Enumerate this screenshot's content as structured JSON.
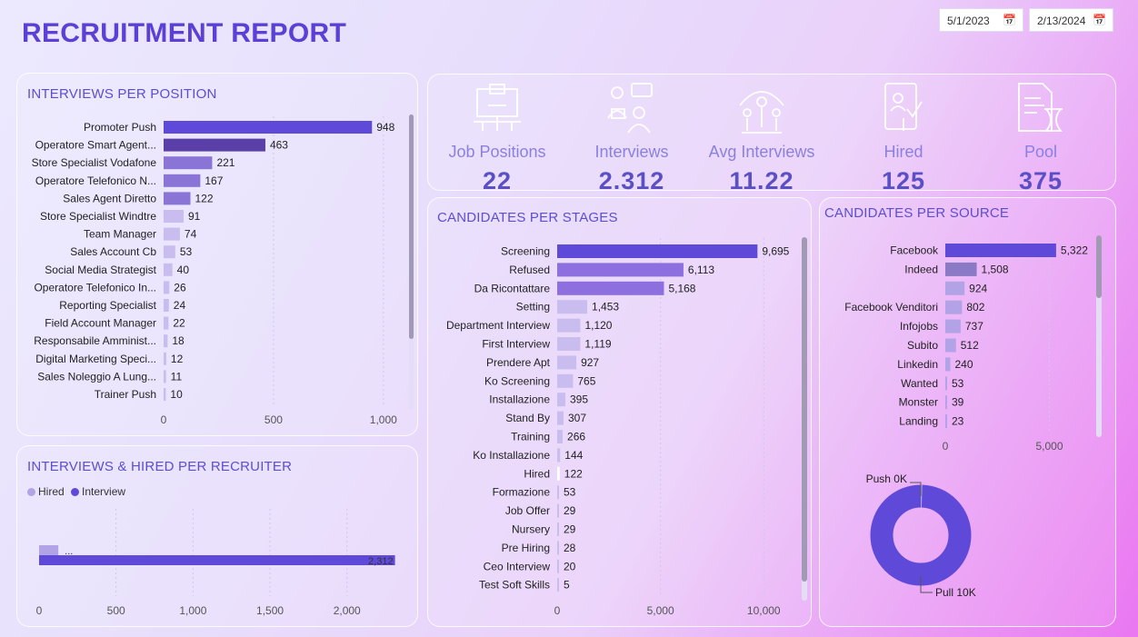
{
  "header": {
    "title": "RECRUITMENT REPORT",
    "date_start": "5/1/2023",
    "date_end": "2/13/2024",
    "calendar_icon": "calendar-icon"
  },
  "kpis": [
    {
      "label": "Job Positions",
      "value": "22",
      "icon": "job-positions-icon"
    },
    {
      "label": "Interviews",
      "value": "2.312",
      "icon": "interviews-icon"
    },
    {
      "label": "Avg Interviews",
      "value": "11.22",
      "icon": "avg-interviews-icon"
    },
    {
      "label": "Hired",
      "value": "125",
      "icon": "hired-icon"
    },
    {
      "label": "Pool",
      "value": "375",
      "icon": "pool-icon"
    }
  ],
  "colors": {
    "dark": "#5f49d8",
    "mid": "#8a74d6",
    "light": "#b2a3e6",
    "deep": "#5b3fa8",
    "pale": "#c9bdf0"
  },
  "chart_data": [
    {
      "id": "positions",
      "type": "bar",
      "orientation": "horizontal",
      "title": "INTERVIEWS PER POSITION",
      "categories": [
        "Promoter Push",
        "Operatore Smart Agent...",
        "Store Specialist Vodafone",
        "Operatore Telefonico N...",
        "Sales Agent Diretto",
        "Store Specialist Windtre",
        "Team Manager",
        "Sales Account Cb",
        "Social Media Strategist",
        "Operatore Telefonico In...",
        "Reporting Specialist",
        "Field Account Manager",
        "Responsabile Amminist...",
        "Digital Marketing Speci...",
        "Sales Noleggio A Lung...",
        "Trainer Push"
      ],
      "values": [
        948,
        463,
        221,
        167,
        122,
        91,
        74,
        53,
        40,
        26,
        24,
        22,
        18,
        12,
        11,
        10
      ],
      "value_labels": [
        "948",
        "463",
        "221",
        "167",
        "122",
        "91",
        "74",
        "53",
        "40",
        "26",
        "24",
        "22",
        "18",
        "12",
        "11",
        "10"
      ],
      "xlim": [
        0,
        1100
      ],
      "xticks": [
        0,
        500,
        1000
      ],
      "xtick_labels": [
        "0",
        "500",
        "1,000"
      ],
      "grid": true
    },
    {
      "id": "recruiter",
      "type": "bar",
      "orientation": "horizontal",
      "title": "INTERVIEWS & HIRED PER RECRUITER",
      "series": [
        {
          "name": "Hired",
          "values": [
            125
          ],
          "value_labels": [
            "..."
          ]
        },
        {
          "name": "Interview",
          "values": [
            2312
          ],
          "value_labels": [
            "2,312"
          ]
        }
      ],
      "xlim": [
        0,
        2350
      ],
      "xticks": [
        0,
        500,
        1000,
        1500,
        2000
      ],
      "xtick_labels": [
        "0",
        "500",
        "1,000",
        "1,500",
        "2,000"
      ],
      "grid": true,
      "legend": "top-left"
    },
    {
      "id": "stages",
      "type": "bar",
      "orientation": "horizontal",
      "title": "CANDIDATES PER STAGES",
      "categories": [
        "Screening",
        "Refused",
        "Da Ricontattare",
        "Setting",
        "Department Interview",
        "First Interview",
        "Prendere Apt",
        "Ko Screening",
        "Installazione",
        "Stand By",
        "Training",
        "Ko Installazione",
        "Hired",
        "Formazione",
        "Job Offer",
        "Nursery",
        "Pre Hiring",
        "Ceo Interview",
        "Test Soft Skills"
      ],
      "values": [
        9695,
        6113,
        5168,
        1453,
        1120,
        1119,
        927,
        765,
        395,
        307,
        266,
        144,
        122,
        53,
        29,
        29,
        28,
        20,
        5
      ],
      "value_labels": [
        "9,695",
        "6,113",
        "5,168",
        "1,453",
        "1,120",
        "1,119",
        "927",
        "765",
        "395",
        "307",
        "266",
        "144",
        "122",
        "53",
        "29",
        "29",
        "28",
        "20",
        "5"
      ],
      "xlim": [
        0,
        11000
      ],
      "xticks": [
        0,
        5000,
        10000
      ],
      "xtick_labels": [
        "0",
        "5,000",
        "10,000"
      ],
      "grid": true
    },
    {
      "id": "sources",
      "type": "bar",
      "orientation": "horizontal",
      "title": "CANDIDATES PER SOURCE",
      "categories": [
        "Facebook",
        "Indeed",
        "",
        "Facebook Venditori",
        "Infojobs",
        "Subito",
        "Linkedin",
        "Wanted",
        "Monster",
        "Landing"
      ],
      "values": [
        5322,
        1508,
        924,
        802,
        737,
        512,
        240,
        53,
        39,
        23
      ],
      "value_labels": [
        "5,322",
        "1,508",
        "924",
        "802",
        "737",
        "512",
        "240",
        "53",
        "39",
        "23"
      ],
      "xlim": [
        0,
        6200
      ],
      "xticks": [
        0,
        5000
      ],
      "xtick_labels": [
        "0",
        "5,000"
      ],
      "grid": true
    },
    {
      "id": "push_pull",
      "type": "pie",
      "donut": true,
      "slices": [
        {
          "label": "Push 0K",
          "value": 0.05
        },
        {
          "label": "Pull 10K",
          "value": 10
        }
      ]
    }
  ]
}
